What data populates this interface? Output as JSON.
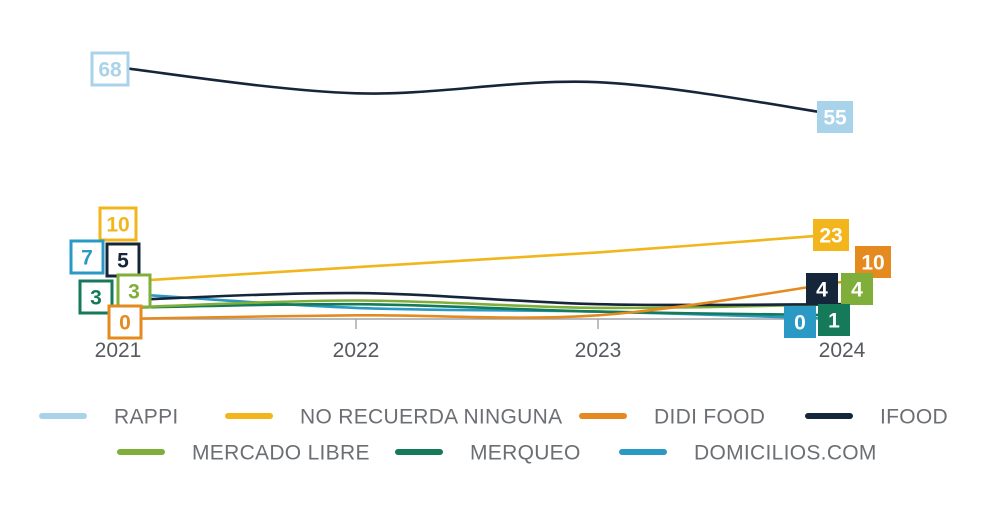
{
  "chart_data": {
    "type": "line",
    "x": [
      "2021",
      "2022",
      "2023",
      "2024"
    ],
    "ylim": [
      0,
      70
    ],
    "grid": false,
    "legend_position": "bottom",
    "series": [
      {
        "name": "RAPPI",
        "color": "#a9d3ea",
        "line_color": "#16263a",
        "values": [
          68,
          61,
          64,
          55
        ],
        "labels": [
          "68",
          "",
          "",
          "55"
        ],
        "label_style": "outline"
      },
      {
        "name": "NO RECUERDA NINGUNA",
        "color": "#f2b51c",
        "values": [
          10,
          14,
          18,
          23
        ],
        "labels": [
          "10",
          "",
          "",
          "23"
        ],
        "label_style": "outline-start"
      },
      {
        "name": "DIDI FOOD",
        "color": "#e58a1f",
        "values": [
          0,
          1,
          1,
          10
        ],
        "labels": [
          "0",
          "",
          "",
          "10"
        ],
        "label_style": "outline-start"
      },
      {
        "name": "IFOOD",
        "color": "#16263a",
        "values": [
          5,
          7,
          4,
          4
        ],
        "labels": [
          "5",
          "",
          "",
          "4"
        ],
        "label_style": "outline-start"
      },
      {
        "name": "MERCADO LIBRE",
        "color": "#7fae3a",
        "values": [
          3,
          5,
          3,
          4
        ],
        "labels": [
          "3",
          "",
          "",
          "4"
        ],
        "label_style": "outline-start"
      },
      {
        "name": "MERQUEO",
        "color": "#157a5a",
        "values": [
          3,
          4,
          2,
          1
        ],
        "labels": [
          "3",
          "",
          "",
          "1"
        ],
        "label_style": "outline-start"
      },
      {
        "name": "DOMICILIOS.COM",
        "color": "#2a9ac4",
        "values": [
          7,
          3,
          2,
          0
        ],
        "labels": [
          "7",
          "",
          "",
          "0"
        ],
        "label_style": "outline-start"
      }
    ]
  }
}
